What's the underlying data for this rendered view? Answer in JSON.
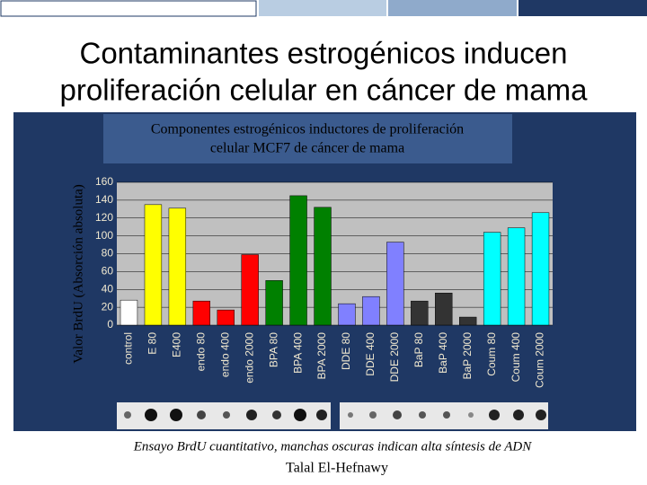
{
  "chart_data": {
    "type": "bar",
    "title": "Contaminantes estrogénicos inducen",
    "subtitle": "proliferación celular en cáncer de mama",
    "chart_title": [
      "Componentes estrogénicos inductores de proliferación",
      "celular MCF7 de cáncer de mama"
    ],
    "y_label": "Valor BrdU (Absorción absoluta)",
    "categories": [
      "control",
      "E 80",
      "E400",
      "endo 80",
      "endo 400",
      "endo 2000",
      "BPA 80",
      "BPA 400",
      "BPA 2000",
      "DDE 80",
      "DDE 400",
      "DDE 2000",
      "BaP 80",
      "BaP 400",
      "BaP 2000",
      "Coum 80",
      "Coum 400",
      "Coum 2000"
    ],
    "values": [
      28,
      135,
      131,
      27,
      17,
      79,
      50,
      145,
      132,
      24,
      32,
      93,
      27,
      36,
      9,
      104,
      109,
      126
    ],
    "colors": [
      "#ffffff",
      "#ffff00",
      "#ffff00",
      "#ff0000",
      "#ff0000",
      "#ff0000",
      "#008000",
      "#008000",
      "#008000",
      "#8080ff",
      "#8080ff",
      "#8080ff",
      "#333333",
      "#333333",
      "#333333",
      "#00ffff",
      "#00ffff",
      "#00ffff"
    ],
    "ylim": [
      0,
      160
    ],
    "yticks": [
      0,
      20,
      40,
      60,
      80,
      100,
      120,
      140,
      160
    ],
    "grid": true,
    "caption": "Ensayo BrdU cuantitativo, manchas oscuras indican alta síntesis de ADN",
    "author": "Talal El-Hefnawy"
  }
}
